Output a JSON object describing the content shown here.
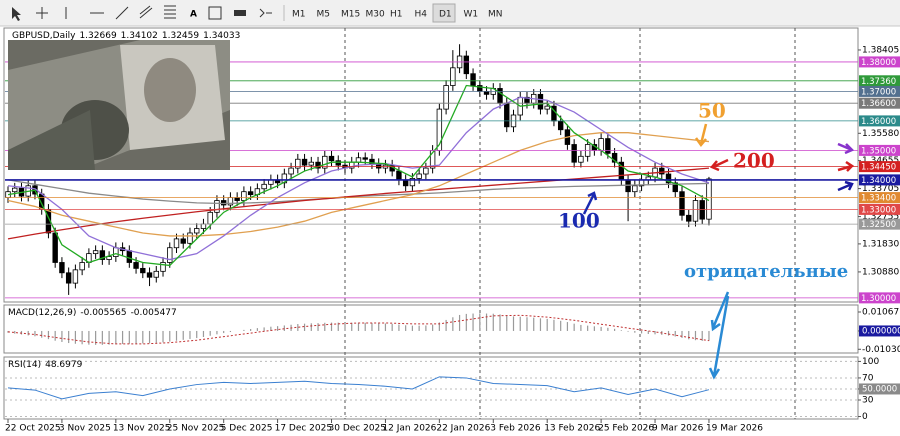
{
  "toolbar": {
    "timeframes": [
      "M1",
      "M5",
      "M15",
      "M30",
      "H1",
      "H4",
      "D1",
      "W1",
      "MN"
    ]
  },
  "chart_data": [
    {
      "type": "candlestick",
      "title": "GBPUSD,Daily",
      "categories": [
        "22 Oct 2025",
        null,
        null,
        null,
        null,
        null,
        null,
        null,
        "3 Nov 2025",
        null,
        null,
        null,
        null,
        null,
        null,
        null,
        "13 Nov 2025",
        null,
        null,
        null,
        null,
        null,
        null,
        null,
        "25 Nov 2025",
        null,
        null,
        null,
        null,
        null,
        null,
        null,
        "5 Dec 2025",
        null,
        null,
        null,
        null,
        null,
        null,
        null,
        "17 Dec 2025",
        null,
        null,
        null,
        null,
        null,
        null,
        null,
        "30 Dec 2025",
        null,
        null,
        null,
        null,
        null,
        null,
        null,
        "12 Jan 2026",
        null,
        null,
        null,
        null,
        null,
        null,
        null,
        "22 Jan 2026",
        null,
        null,
        null,
        null,
        null,
        null,
        null,
        "3 Feb 2026",
        null,
        null,
        null,
        null,
        null,
        null,
        null,
        "13 Feb 2026",
        null,
        null,
        null,
        null,
        null,
        null,
        null,
        "25 Feb 2026",
        null,
        null,
        null,
        null,
        null,
        null,
        null,
        "9 Mar 2026",
        null,
        null,
        null,
        null,
        null,
        null,
        null,
        "19 Mar 2026"
      ],
      "open": [
        1.334,
        1.336,
        1.3372,
        1.3345,
        1.338,
        1.3352,
        1.33,
        1.322,
        1.312,
        1.3085,
        1.305,
        1.3095,
        1.312,
        1.315,
        1.316,
        1.313,
        1.314,
        1.317,
        1.316,
        1.312,
        1.31,
        1.3085,
        1.307,
        1.309,
        1.312,
        1.317,
        1.32,
        1.3185,
        1.322,
        1.3235,
        1.325,
        1.329,
        1.333,
        1.3315,
        1.334,
        1.333,
        1.336,
        1.335,
        1.337,
        1.3385,
        1.34,
        1.339,
        1.342,
        1.344,
        1.347,
        1.345,
        1.346,
        1.344,
        1.348,
        1.3465,
        1.345,
        1.344,
        1.346,
        1.3475,
        1.347,
        1.3455,
        1.344,
        1.345,
        1.343,
        1.34,
        1.338,
        1.3405,
        1.342,
        1.344,
        1.35,
        1.364,
        1.372,
        1.378,
        1.382,
        1.376,
        1.372,
        1.37,
        1.369,
        1.371,
        1.366,
        1.358,
        1.362,
        1.368,
        1.366,
        1.369,
        1.364,
        1.365,
        1.36,
        1.357,
        1.352,
        1.346,
        1.348,
        1.352,
        1.35,
        1.354,
        1.349,
        1.346,
        1.34,
        1.336,
        1.338,
        1.34,
        1.341,
        1.344,
        1.342,
        1.339,
        1.336,
        1.328,
        1.326,
        1.333,
        1.32669
      ],
      "high": [
        1.3378,
        1.339,
        1.339,
        1.3398,
        1.3398,
        1.337,
        1.3318,
        1.3238,
        1.3138,
        1.3103,
        1.3113,
        1.3138,
        1.3168,
        1.3178,
        1.3178,
        1.3158,
        1.3188,
        1.3188,
        1.3178,
        1.3138,
        1.3118,
        1.3103,
        1.3108,
        1.3138,
        1.3188,
        1.3218,
        1.3218,
        1.3238,
        1.3253,
        1.3268,
        1.3308,
        1.3348,
        1.3348,
        1.3358,
        1.3358,
        1.3378,
        1.3378,
        1.3388,
        1.3403,
        1.3418,
        1.3418,
        1.3438,
        1.3458,
        1.3488,
        1.3488,
        1.3478,
        1.3478,
        1.3498,
        1.3498,
        1.3483,
        1.3468,
        1.3478,
        1.3493,
        1.3493,
        1.3488,
        1.3473,
        1.3468,
        1.3468,
        1.3448,
        1.3418,
        1.3423,
        1.3438,
        1.3458,
        1.3518,
        1.3658,
        1.3738,
        1.384,
        1.386,
        1.3838,
        1.3778,
        1.3738,
        1.3718,
        1.3728,
        1.3728,
        1.3678,
        1.3638,
        1.3698,
        1.3698,
        1.3708,
        1.3708,
        1.3668,
        1.3668,
        1.3618,
        1.3588,
        1.3538,
        1.3498,
        1.3538,
        1.3538,
        1.3558,
        1.3558,
        1.3508,
        1.3478,
        1.3418,
        1.3398,
        1.3418,
        1.3428,
        1.3458,
        1.3458,
        1.3438,
        1.3408,
        1.3378,
        1.3298,
        1.3348,
        1.3348,
        1.34102
      ],
      "low": [
        1.3322,
        1.3342,
        1.3327,
        1.3327,
        1.3334,
        1.3282,
        1.3202,
        1.3102,
        1.3067,
        1.301,
        1.3032,
        1.3077,
        1.3102,
        1.3132,
        1.3112,
        1.3112,
        1.3122,
        1.3142,
        1.3102,
        1.3082,
        1.3067,
        1.304,
        1.3052,
        1.3072,
        1.3102,
        1.3152,
        1.3167,
        1.3167,
        1.3202,
        1.3217,
        1.3232,
        1.3272,
        1.3297,
        1.3297,
        1.3312,
        1.3312,
        1.3332,
        1.3332,
        1.3352,
        1.3367,
        1.3372,
        1.3372,
        1.3402,
        1.3422,
        1.3432,
        1.3432,
        1.3422,
        1.3422,
        1.3447,
        1.3432,
        1.3422,
        1.3422,
        1.3442,
        1.3452,
        1.3437,
        1.3422,
        1.3422,
        1.3412,
        1.3382,
        1.3362,
        1.3362,
        1.3387,
        1.3402,
        1.3422,
        1.3482,
        1.3622,
        1.3702,
        1.3762,
        1.3742,
        1.3702,
        1.3682,
        1.3672,
        1.3672,
        1.3642,
        1.3562,
        1.3562,
        1.3602,
        1.3642,
        1.3642,
        1.3622,
        1.3622,
        1.3582,
        1.3552,
        1.3502,
        1.3442,
        1.3442,
        1.3462,
        1.3482,
        1.3482,
        1.3472,
        1.3442,
        1.3382,
        1.326,
        1.3342,
        1.3362,
        1.3382,
        1.3392,
        1.3402,
        1.3372,
        1.3342,
        1.3262,
        1.324,
        1.3242,
        1.325,
        1.32459
      ],
      "close": [
        1.336,
        1.3372,
        1.3345,
        1.338,
        1.3352,
        1.33,
        1.322,
        1.312,
        1.3085,
        1.305,
        1.3095,
        1.312,
        1.315,
        1.316,
        1.313,
        1.314,
        1.317,
        1.316,
        1.312,
        1.31,
        1.3085,
        1.307,
        1.309,
        1.312,
        1.317,
        1.32,
        1.3185,
        1.322,
        1.3235,
        1.325,
        1.329,
        1.333,
        1.3315,
        1.334,
        1.333,
        1.336,
        1.335,
        1.337,
        1.3385,
        1.34,
        1.339,
        1.342,
        1.344,
        1.347,
        1.345,
        1.346,
        1.344,
        1.348,
        1.3465,
        1.345,
        1.344,
        1.346,
        1.3475,
        1.347,
        1.3455,
        1.344,
        1.345,
        1.343,
        1.34,
        1.338,
        1.3405,
        1.342,
        1.344,
        1.35,
        1.364,
        1.372,
        1.378,
        1.382,
        1.376,
        1.372,
        1.37,
        1.369,
        1.371,
        1.366,
        1.358,
        1.362,
        1.368,
        1.366,
        1.369,
        1.364,
        1.365,
        1.36,
        1.357,
        1.352,
        1.346,
        1.348,
        1.352,
        1.35,
        1.354,
        1.349,
        1.346,
        1.34,
        1.336,
        1.338,
        1.34,
        1.341,
        1.344,
        1.342,
        1.339,
        1.336,
        1.328,
        1.326,
        1.333,
        1.32669,
        1.34033
      ],
      "ma_x": [
        0,
        4,
        8,
        12,
        16,
        20,
        24,
        28,
        32,
        36,
        40,
        44,
        48,
        52,
        56,
        60,
        64,
        68,
        72,
        76,
        80,
        84,
        88,
        92,
        96,
        100,
        104
      ],
      "moving_averages": [
        {
          "color": "#8a8a8a",
          "values": [
            1.34,
            1.3385,
            1.337,
            1.3355,
            1.3345,
            1.3335,
            1.3328,
            1.3322,
            1.332,
            1.3322,
            1.3326,
            1.3332,
            1.3338,
            1.3344,
            1.3348,
            1.3352,
            1.3356,
            1.3362,
            1.3368,
            1.3372,
            1.3375,
            1.3378,
            1.338,
            1.3382,
            1.3384,
            1.3386,
            1.3388
          ]
        },
        {
          "color": "#c02020",
          "values": [
            1.32,
            1.3216,
            1.3231,
            1.3245,
            1.3258,
            1.327,
            1.3281,
            1.3292,
            1.3302,
            1.3312,
            1.3321,
            1.333,
            1.3338,
            1.3346,
            1.3354,
            1.3361,
            1.3368,
            1.3375,
            1.3382,
            1.3389,
            1.3396,
            1.3403,
            1.341,
            1.3417,
            1.3424,
            1.3432,
            1.344
          ]
        },
        {
          "color": "#e0a050",
          "values": [
            1.333,
            1.331,
            1.328,
            1.326,
            1.324,
            1.322,
            1.321,
            1.321,
            1.3215,
            1.3225,
            1.324,
            1.326,
            1.329,
            1.331,
            1.333,
            1.335,
            1.338,
            1.342,
            1.346,
            1.35,
            1.353,
            1.355,
            1.356,
            1.356,
            1.355,
            1.354,
            1.353
          ]
        },
        {
          "color": "#9070d8",
          "values": [
            1.338,
            1.337,
            1.33,
            1.321,
            1.317,
            1.315,
            1.313,
            1.315,
            1.321,
            1.328,
            1.334,
            1.339,
            1.343,
            1.345,
            1.3455,
            1.344,
            1.345,
            1.356,
            1.364,
            1.368,
            1.367,
            1.363,
            1.357,
            1.351,
            1.346,
            1.342,
            1.339
          ]
        },
        {
          "color": "#22aa22",
          "values": [
            1.335,
            1.3365,
            1.318,
            1.312,
            1.315,
            1.312,
            1.311,
            1.32,
            1.329,
            1.334,
            1.338,
            1.343,
            1.346,
            1.346,
            1.3455,
            1.341,
            1.352,
            1.372,
            1.371,
            1.365,
            1.366,
            1.356,
            1.35,
            1.343,
            1.341,
            1.338,
            1.333
          ]
        }
      ],
      "levels": [
        {
          "value": 1.38,
          "label": "1.38000",
          "color": "#cc44cc"
        },
        {
          "value": 1.3736,
          "label": "1.37360",
          "color": "#2f9a3a"
        },
        {
          "value": 1.37,
          "label": "1.37000",
          "color": "#53708f"
        },
        {
          "value": 1.366,
          "label": "1.36600",
          "color": "#7a7a7a"
        },
        {
          "value": 1.36,
          "label": "1.36000",
          "color": "#2b8a8a"
        },
        {
          "value": 1.35,
          "label": "1.35000",
          "color": "#cc44cc"
        },
        {
          "value": 1.3445,
          "label": "1.34450",
          "color": "#d42020"
        },
        {
          "value": 1.34,
          "label": "1.34000",
          "color": "#1a1aa0"
        },
        {
          "value": 1.334,
          "label": "1.33400",
          "color": "#e08a30"
        },
        {
          "value": 1.33,
          "label": "1.33000",
          "color": "#e04848"
        },
        {
          "value": 1.325,
          "label": "1.32500",
          "color": "#999999"
        },
        {
          "value": 1.3,
          "label": "1.30000",
          "color": "#cc44cc"
        }
      ],
      "annotations": [
        {
          "text": "50",
          "color": "#f0a030"
        },
        {
          "text": "200",
          "color": "#d42020"
        },
        {
          "text": "100",
          "color": "#1a2ab0"
        },
        {
          "text": "отрицательные",
          "color": "#2a8ad4"
        }
      ],
      "ylim": [
        1.2986,
        1.3915
      ],
      "yticks": [
        1.38405,
        {
          "value": 1.3558,
          "label": "1.35580"
        },
        1.34655,
        1.33705,
        1.32755,
        {
          "value": 1.3183,
          "label": "1.31830"
        },
        {
          "value": 1.3088,
          "label": "1.30880"
        }
      ]
    },
    {
      "type": "bar",
      "title": "MACD(12,26,9)",
      "color": "#9a9a9a",
      "values": [
        -0.001,
        -0.0015,
        -0.002,
        -0.0025,
        -0.003,
        -0.0038,
        -0.0046,
        -0.0055,
        -0.0062,
        -0.0068,
        -0.0072,
        -0.0075,
        -0.0077,
        -0.0078,
        -0.0078,
        -0.0077,
        -0.0075,
        -0.0073,
        -0.0072,
        -0.0071,
        -0.007,
        -0.0069,
        -0.0067,
        -0.0064,
        -0.006,
        -0.0055,
        -0.005,
        -0.0045,
        -0.004,
        -0.0034,
        -0.0027,
        -0.0019,
        -0.0012,
        -0.0006,
        0.0,
        0.0006,
        0.0011,
        0.0016,
        0.002,
        0.0024,
        0.0027,
        0.0031,
        0.0035,
        0.0039,
        0.0041,
        0.0043,
        0.0044,
        0.0046,
        0.0047,
        0.0047,
        0.0046,
        0.0046,
        0.0046,
        0.0046,
        0.0045,
        0.0044,
        0.0042,
        0.004,
        0.0036,
        0.0032,
        0.003,
        0.003,
        0.0031,
        0.0036,
        0.0048,
        0.0062,
        0.0077,
        0.009,
        0.0096,
        0.0098,
        0.0099,
        0.0098,
        0.0097,
        0.0093,
        0.0086,
        0.0082,
        0.008,
        0.0077,
        0.0075,
        0.0071,
        0.0068,
        0.0063,
        0.0057,
        0.005,
        0.0041,
        0.0034,
        0.003,
        0.0026,
        0.0023,
        0.0018,
        0.0012,
        0.0004,
        -0.0004,
        -0.001,
        -0.0014,
        -0.0017,
        -0.0019,
        -0.0022,
        -0.0026,
        -0.0031,
        -0.0039,
        -0.0047,
        -0.0052,
        -0.0056,
        -0.005565
      ],
      "signal": {
        "color": "#c03030",
        "values": [
          -0.0005,
          -0.002,
          -0.0042,
          -0.0062,
          -0.0073,
          -0.0073,
          -0.0066,
          -0.0052,
          -0.0032,
          -0.0012,
          0.0008,
          0.0025,
          0.0038,
          0.0045,
          0.0045,
          0.004,
          0.004,
          0.0062,
          0.0085,
          0.0088,
          0.0078,
          0.006,
          0.0038,
          0.0016,
          -0.0005,
          -0.003,
          -0.005477
        ]
      },
      "ylim": [
        -0.0124,
        0.0146
      ],
      "yticks": [
        0.010671,
        {
          "value": 0,
          "label": "0.000000"
        },
        -0.010302
      ]
    },
    {
      "type": "line",
      "title": "RSI(14)",
      "color": "#3a7fd0",
      "values": [
        52,
        48,
        32,
        42,
        45,
        38,
        50,
        58,
        62,
        60,
        62,
        64,
        60,
        58,
        55,
        50,
        72,
        70,
        60,
        58,
        56,
        45,
        52,
        40,
        50,
        36,
        48.6979
      ],
      "ylim": [
        -4.5,
        108
      ],
      "yticks": [
        100,
        70,
        {
          "value": 50,
          "label": "50.0000"
        },
        30,
        0
      ]
    }
  ]
}
